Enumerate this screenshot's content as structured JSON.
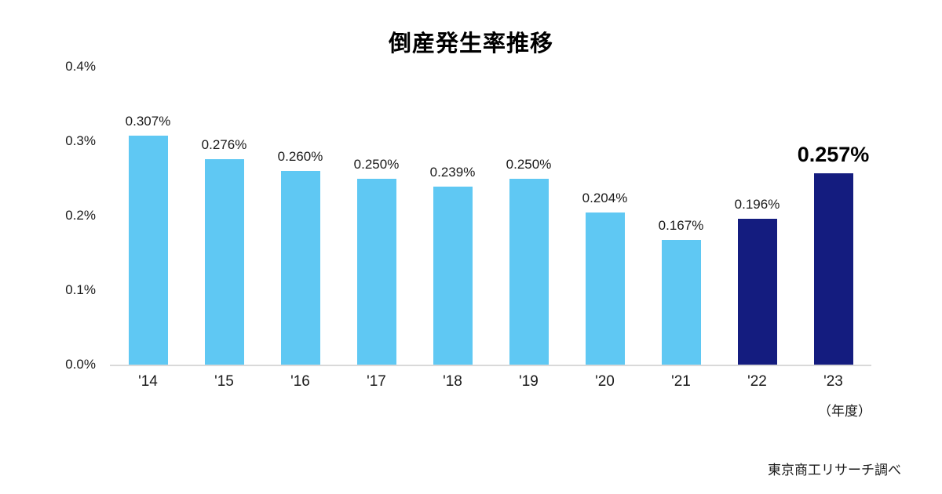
{
  "chart_data": {
    "type": "bar",
    "title": "倒産発生率推移",
    "categories": [
      "'14",
      "'15",
      "'16",
      "'17",
      "'18",
      "'19",
      "'20",
      "'21",
      "'22",
      "'23"
    ],
    "values": [
      0.307,
      0.276,
      0.26,
      0.25,
      0.239,
      0.25,
      0.204,
      0.167,
      0.196,
      0.257
    ],
    "value_labels": [
      "0.307%",
      "0.276%",
      "0.260%",
      "0.250%",
      "0.239%",
      "0.250%",
      "0.204%",
      "0.167%",
      "0.196%",
      "0.257%"
    ],
    "ylim": [
      0,
      0.4
    ],
    "yticks": [
      0,
      0.1,
      0.2,
      0.3,
      0.4
    ],
    "ytick_labels": [
      "0.0%",
      "0.1%",
      "0.2%",
      "0.3%",
      "0.4%"
    ],
    "x_unit_label": "（年度）",
    "source": "東京商工リサーチ調べ",
    "colors": {
      "bar_default": "#5FC8F3",
      "bar_highlight": "#141C7F"
    },
    "highlight_indices": [
      8,
      9
    ],
    "emphasis_index": 9,
    "grid": false,
    "legend": "none",
    "xlabel": "",
    "ylabel": ""
  }
}
